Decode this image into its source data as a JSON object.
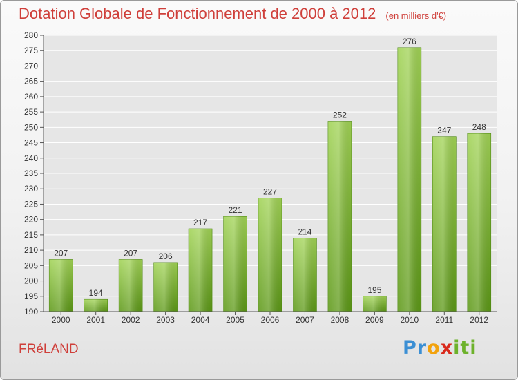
{
  "header": {
    "title": "Dotation Globale de Fonctionnement de 2000 à 2012",
    "unit": "(en milliers d'€)"
  },
  "footer": {
    "commune": "FRéLAND",
    "logo": [
      "P",
      "r",
      "o",
      "x",
      "i",
      "t",
      "i"
    ],
    "logo_colors": [
      "#3b8fd4",
      "#3b8fd4",
      "#f2a20d",
      "#d92a1c",
      "#6db22b",
      "#6db22b",
      "#6db22b"
    ]
  },
  "chart_data": {
    "type": "bar",
    "title": "Dotation Globale de Fonctionnement de 2000 à 2012",
    "subtitle": "(en milliers d'€)",
    "categories": [
      "2000",
      "2001",
      "2002",
      "2003",
      "2004",
      "2005",
      "2006",
      "2007",
      "2008",
      "2009",
      "2010",
      "2011",
      "2012"
    ],
    "values": [
      207,
      194,
      207,
      206,
      217,
      221,
      227,
      214,
      252,
      195,
      276,
      247,
      248
    ],
    "data_labels": [
      "207",
      "194",
      "207",
      "206",
      "217",
      "221",
      "227",
      "214",
      "252",
      "195",
      "276",
      "247",
      "248"
    ],
    "ylim": [
      190,
      280
    ],
    "yticks": [
      190,
      195,
      200,
      205,
      210,
      215,
      220,
      225,
      230,
      235,
      240,
      245,
      250,
      255,
      260,
      265,
      270,
      275,
      280
    ],
    "ytick_labels": [
      "190",
      "195",
      "200",
      "205",
      "210",
      "215",
      "220",
      "225",
      "230",
      "235",
      "240",
      "245",
      "250",
      "255",
      "260",
      "265",
      "270",
      "275",
      "280"
    ],
    "grid": true,
    "colors": {
      "bar_top": "#a1d355",
      "bar_bottom": "#5c9816",
      "grid": "#ffffff",
      "title": "#cf3f3a"
    }
  }
}
